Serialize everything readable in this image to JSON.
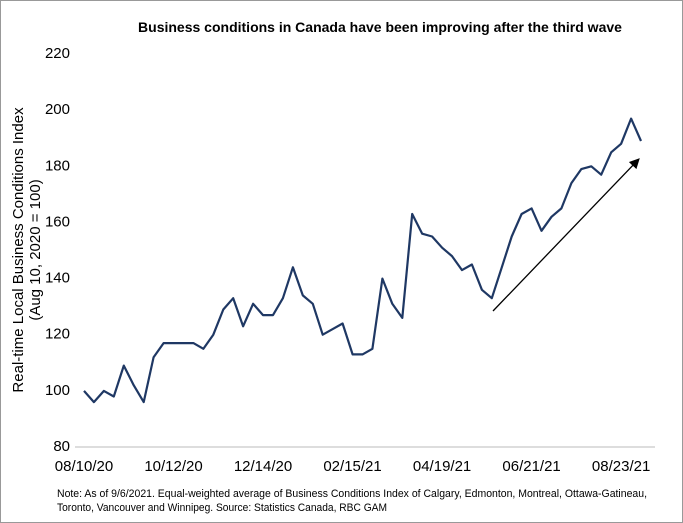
{
  "chart_data": {
    "type": "line",
    "title": "Business conditions in Canada have been improving after the third wave",
    "ylabel": [
      "Real-time Local Business Conditions Index",
      "(Aug 10, 2020 = 100)"
    ],
    "categories": [
      "08/10/20",
      null,
      null,
      null,
      null,
      null,
      null,
      null,
      null,
      "10/12/20",
      null,
      null,
      null,
      null,
      null,
      null,
      null,
      null,
      "12/14/20",
      null,
      null,
      null,
      null,
      null,
      null,
      null,
      null,
      "02/15/21",
      null,
      null,
      null,
      null,
      null,
      null,
      null,
      null,
      "04/19/21",
      null,
      null,
      null,
      null,
      null,
      null,
      null,
      null,
      "06/21/21",
      null,
      null,
      null,
      null,
      null,
      null,
      null,
      null,
      "08/23/21",
      null,
      null
    ],
    "series": [
      {
        "name": "Business Conditions Index",
        "color": "#1f3864",
        "values": [
          100,
          96,
          100,
          98,
          109,
          102,
          96,
          112,
          117,
          117,
          117,
          117,
          115,
          120,
          129,
          133,
          123,
          131,
          127,
          127,
          133,
          144,
          134,
          131,
          120,
          122,
          124,
          113,
          113,
          115,
          140,
          131,
          126,
          163,
          156,
          155,
          151,
          148,
          143,
          145,
          136,
          133,
          144,
          155,
          163,
          165,
          157,
          162,
          165,
          174,
          179,
          180,
          177,
          185,
          188,
          197,
          189
        ]
      }
    ],
    "ylim": [
      80,
      220
    ],
    "yticks": [
      80,
      100,
      120,
      140,
      160,
      180,
      200,
      220
    ],
    "note": [
      "Note: As of 9/6/2021. Equal-weighted average of Business Conditions Index of Calgary, Edmonton, Montreal, Ottawa-Gatineau,",
      "Toronto, Vancouver and Winnipeg. Source: Statistics Canada, RBC GAM"
    ]
  }
}
